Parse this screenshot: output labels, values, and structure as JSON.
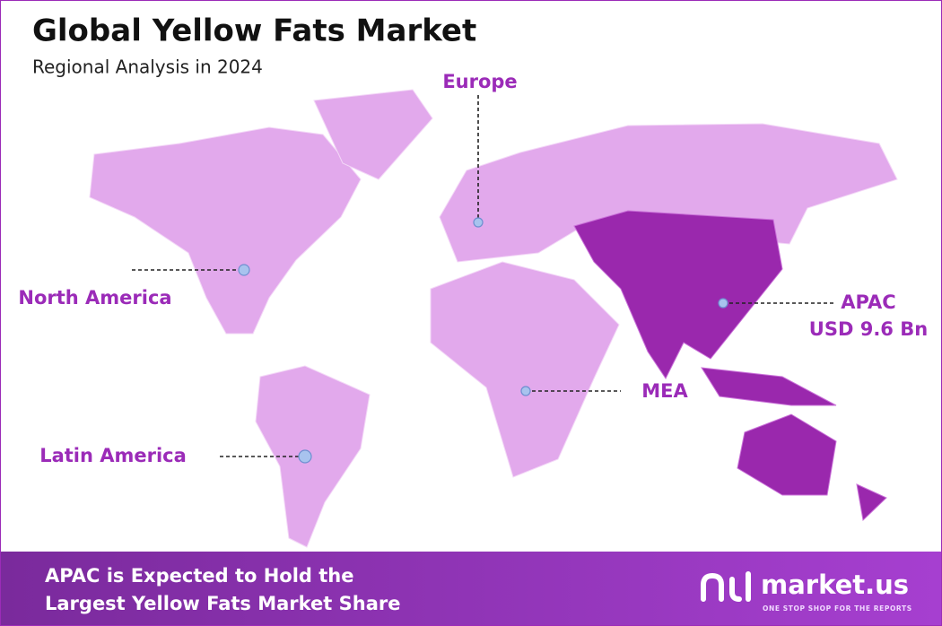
{
  "header": {
    "title": "Global Yellow Fats Market",
    "subtitle": "Regional Analysis in 2024"
  },
  "regions": [
    {
      "label": "Europe"
    },
    {
      "label": "North America"
    },
    {
      "label": "Latin America"
    },
    {
      "label": "MEA"
    },
    {
      "label": "APAC",
      "value_label": "USD 9.6 Bn"
    }
  ],
  "footer": {
    "text_lines": [
      "APAC is Expected to Hold the",
      "Largest Yellow Fats Market Share"
    ],
    "brand": "market.us",
    "tagline": "ONE STOP SHOP FOR THE REPORTS"
  }
}
